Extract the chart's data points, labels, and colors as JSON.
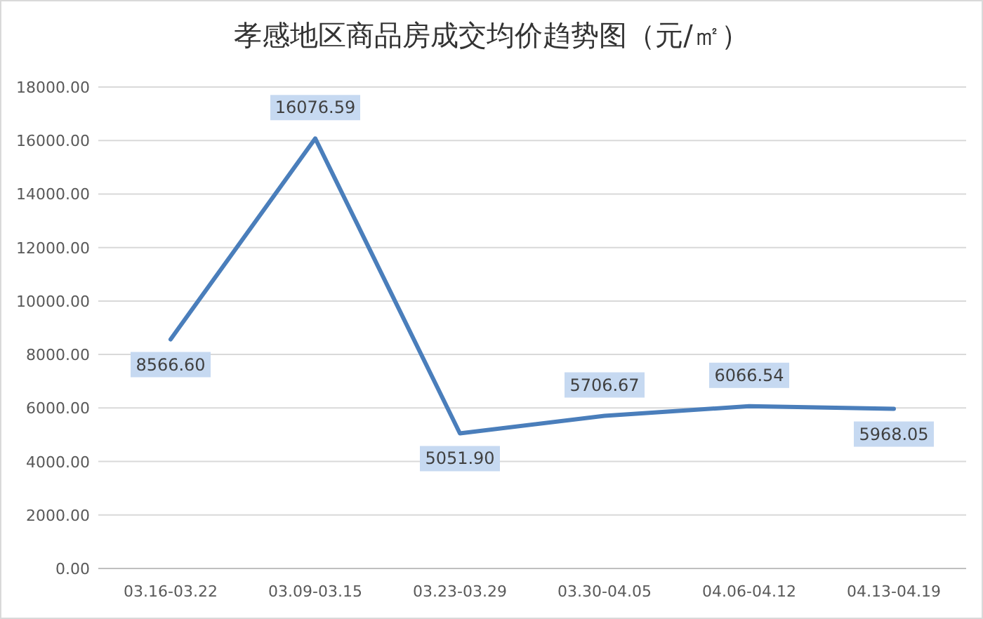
{
  "chart_data": {
    "type": "line",
    "title": "孝感地区商品房成交均价趋势图（元/㎡）",
    "categories": [
      "03.16-03.22",
      "03.09-03.15",
      "03.23-03.29",
      "03.30-04.05",
      "04.06-04.12",
      "04.13-04.19"
    ],
    "series": [
      {
        "color": "#4a7ebb",
        "values": [
          8566.6,
          16076.59,
          5051.9,
          5706.67,
          6066.54,
          5968.05
        ]
      }
    ],
    "value_labels": [
      "8566.60",
      "16076.59",
      "5051.90",
      "5706.67",
      "6066.54",
      "5968.05"
    ],
    "ylim": [
      0,
      18000
    ],
    "yticks": [
      {
        "value": 0,
        "label": "0.00"
      },
      {
        "value": 2000,
        "label": "2000.00"
      },
      {
        "value": 4000,
        "label": "4000.00"
      },
      {
        "value": 6000,
        "label": "6000.00"
      },
      {
        "value": 8000,
        "label": "8000.00"
      },
      {
        "value": 10000,
        "label": "10000.00"
      },
      {
        "value": 12000,
        "label": "12000.00"
      },
      {
        "value": 14000,
        "label": "14000.00"
      },
      {
        "value": 16000,
        "label": "16000.00"
      },
      {
        "value": 18000,
        "label": "18000.00"
      }
    ],
    "grid": "y",
    "marker": "none",
    "line_style": "solid"
  }
}
